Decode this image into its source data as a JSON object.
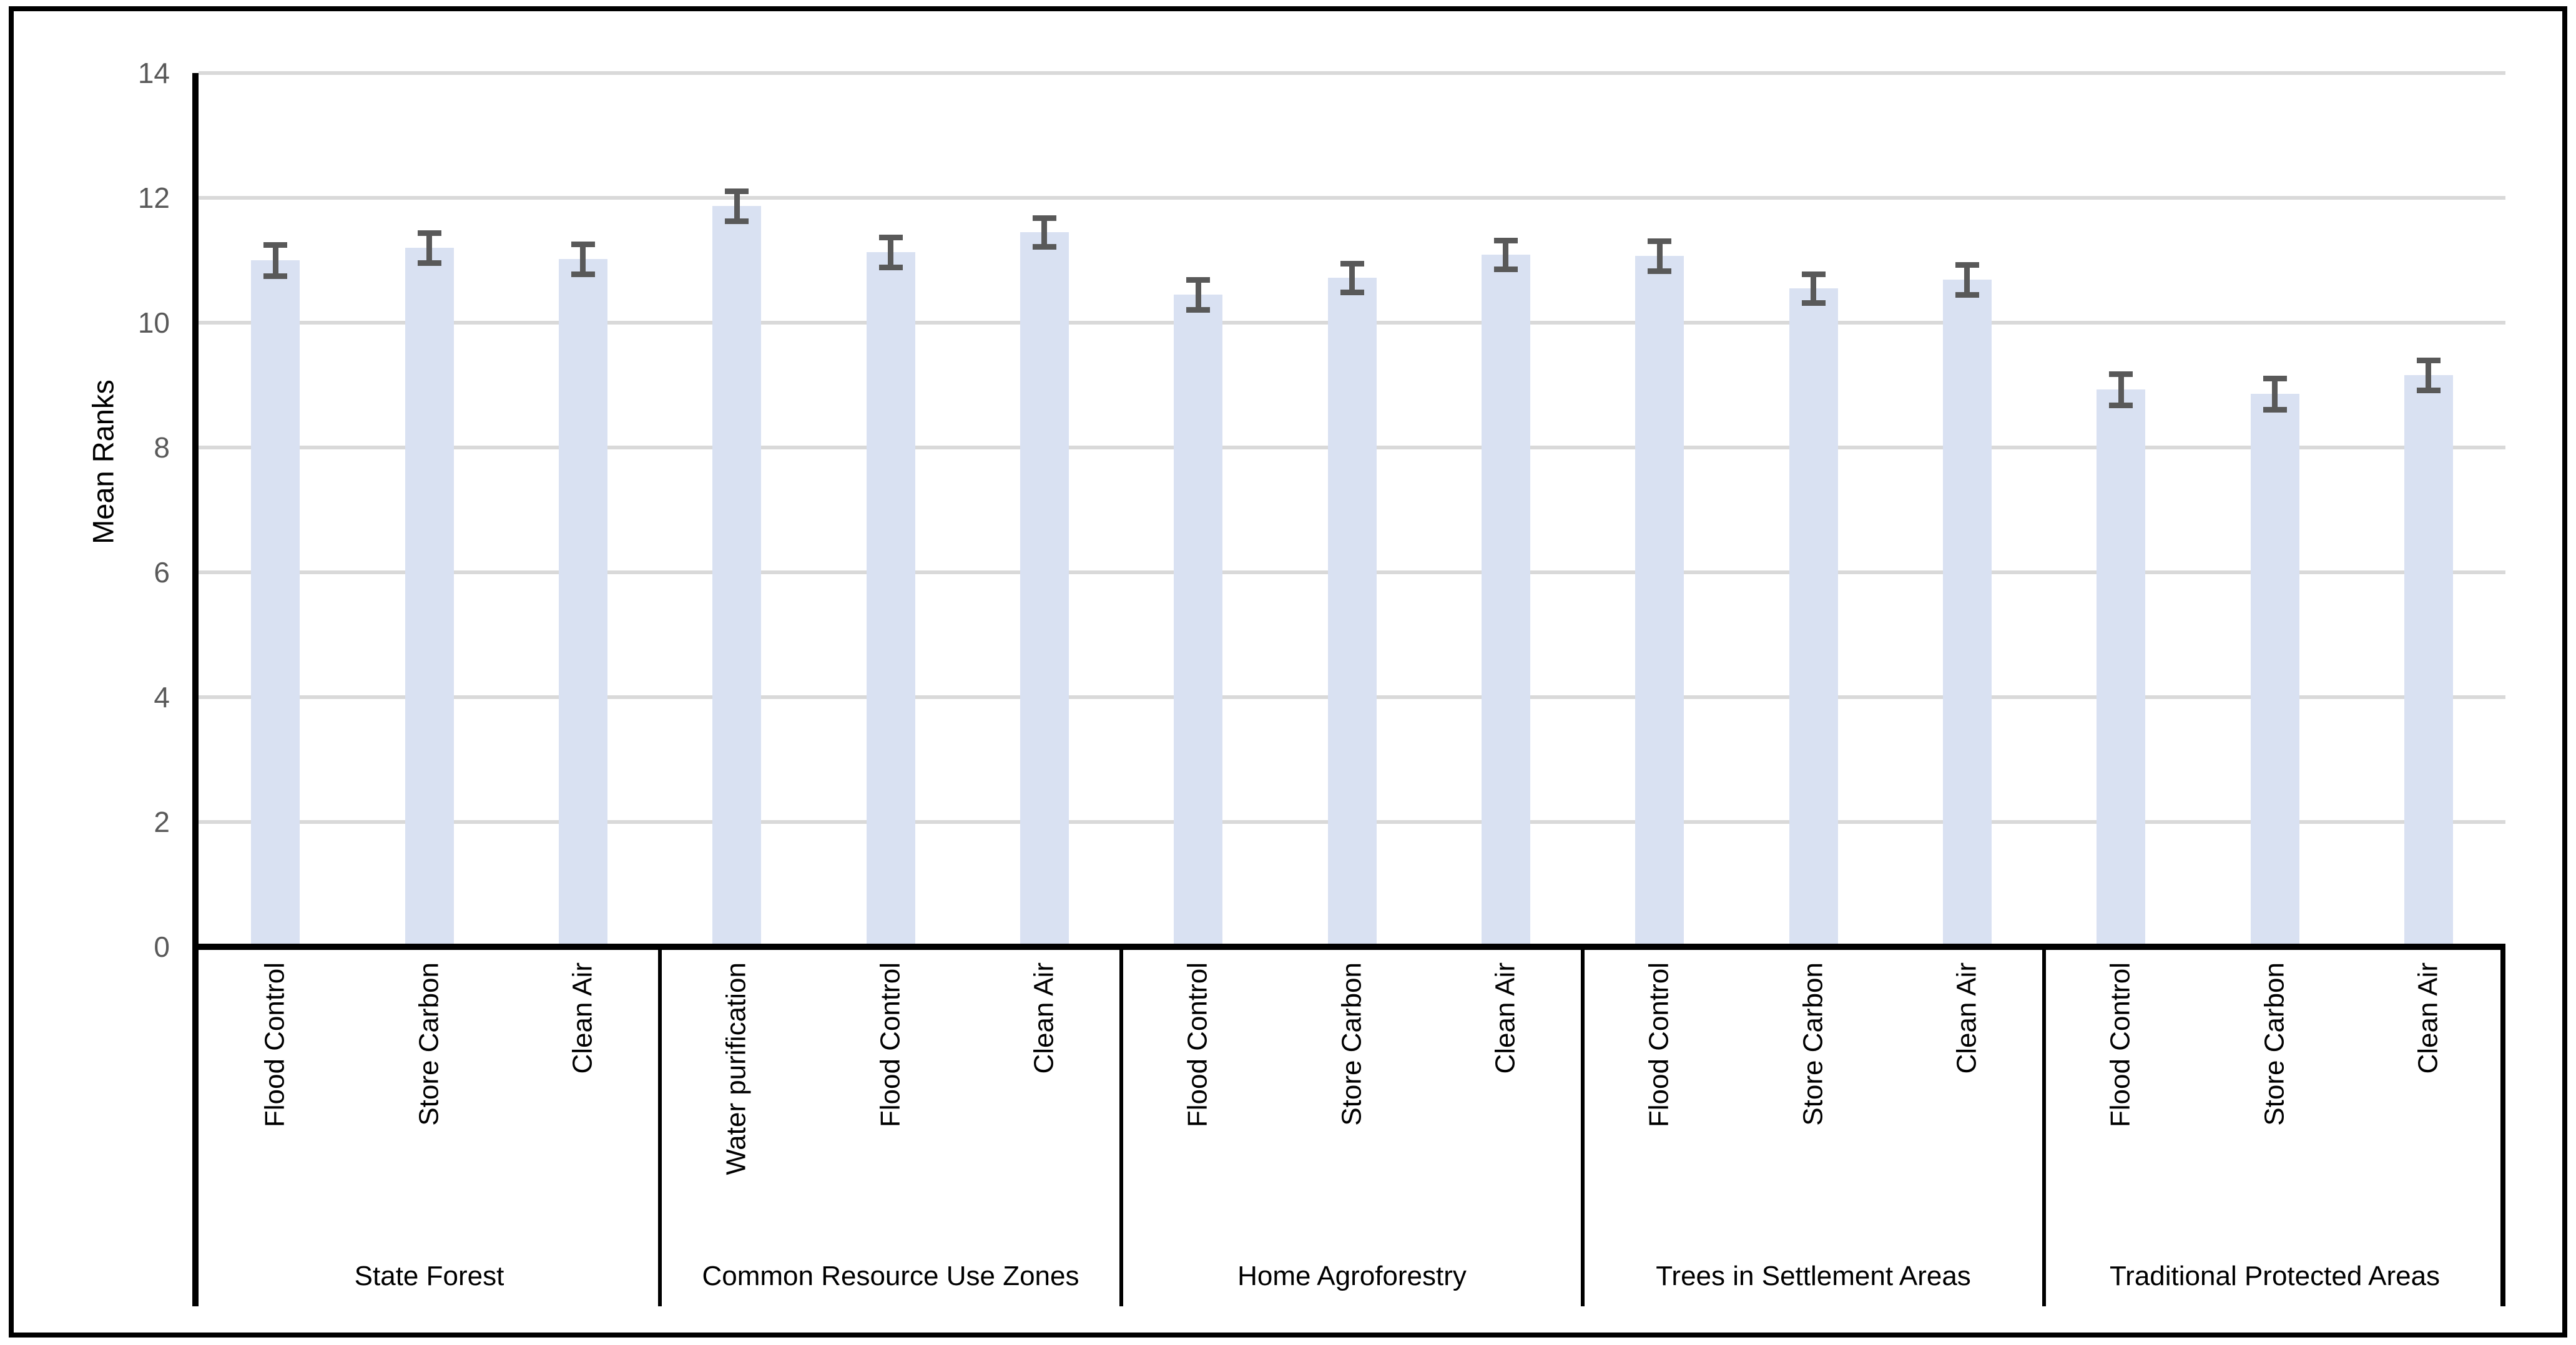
{
  "figure": {
    "background": "#ffffff",
    "border_color": "#000000"
  },
  "chart_data": {
    "type": "bar",
    "title": "",
    "xlabel": "",
    "ylabel": "Mean Ranks",
    "ylim": [
      0,
      14
    ],
    "yticks": [
      0,
      2,
      4,
      6,
      8,
      10,
      12,
      14
    ],
    "grid": true,
    "legend": "none",
    "error_bars": true,
    "colors": {
      "bar_fill": "#d9e1f2",
      "error_bar": "#595959",
      "gridline": "#d9d9d9",
      "tick_label": "#595959",
      "axis_line": "#000000",
      "text": "#000000"
    },
    "groups": [
      {
        "label": "State Forest",
        "bars": [
          {
            "category": "Flood Control",
            "value": 11.0,
            "error": 0.25
          },
          {
            "category": "Store Carbon",
            "value": 11.2,
            "error": 0.24
          },
          {
            "category": "Clean Air",
            "value": 11.02,
            "error": 0.24
          }
        ]
      },
      {
        "label": "Common Resource Use Zones",
        "bars": [
          {
            "category": "Water purification",
            "value": 11.87,
            "error": 0.24
          },
          {
            "category": "Flood Control",
            "value": 11.13,
            "error": 0.24
          },
          {
            "category": "Clean Air",
            "value": 11.45,
            "error": 0.23
          }
        ]
      },
      {
        "label": "Home Agroforestry",
        "bars": [
          {
            "category": "Flood Control",
            "value": 10.45,
            "error": 0.24
          },
          {
            "category": "Store Carbon",
            "value": 10.72,
            "error": 0.23
          },
          {
            "category": "Clean Air",
            "value": 11.09,
            "error": 0.23
          }
        ]
      },
      {
        "label": "Trees in Settlement Areas",
        "bars": [
          {
            "category": "Flood Control",
            "value": 11.07,
            "error": 0.24
          },
          {
            "category": "Store Carbon",
            "value": 10.55,
            "error": 0.23
          },
          {
            "category": "Clean Air",
            "value": 10.69,
            "error": 0.24
          }
        ]
      },
      {
        "label": "Traditional Protected Areas",
        "bars": [
          {
            "category": "Flood Control",
            "value": 8.93,
            "error": 0.25
          },
          {
            "category": "Store Carbon",
            "value": 8.86,
            "error": 0.25
          },
          {
            "category": "Clean Air",
            "value": 9.16,
            "error": 0.24
          }
        ]
      }
    ]
  }
}
